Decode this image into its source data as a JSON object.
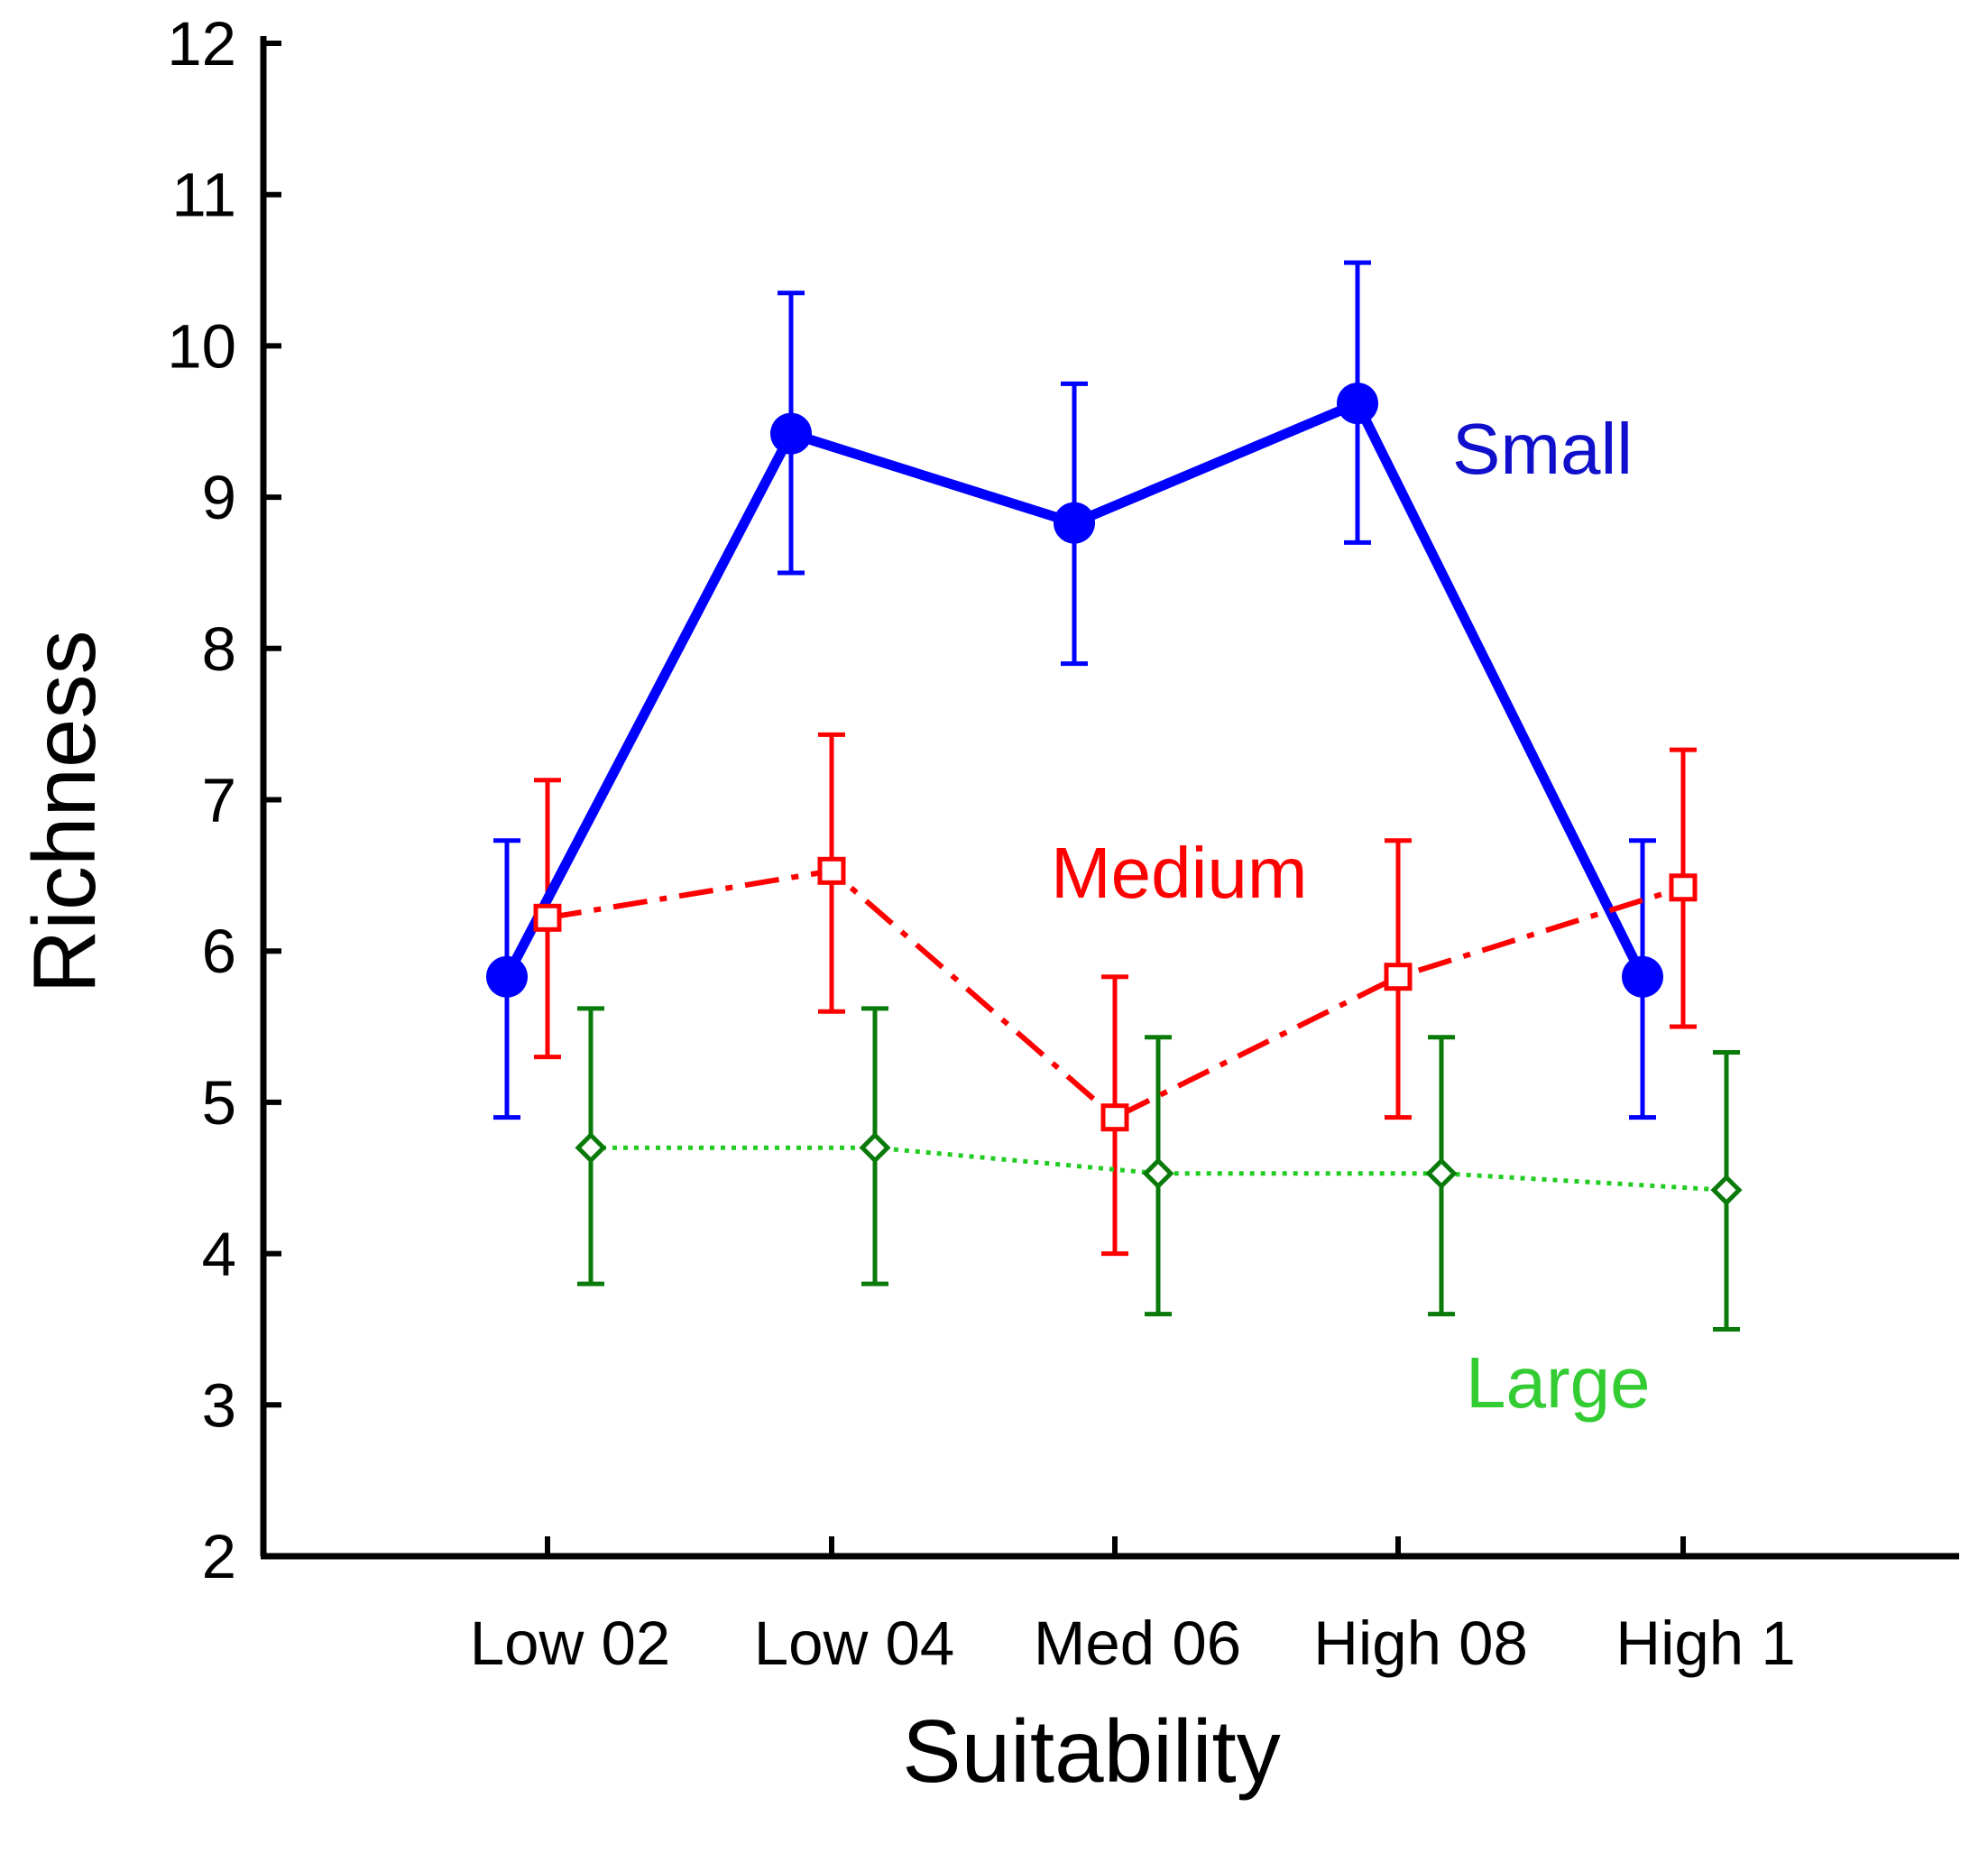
{
  "chart_data": {
    "type": "line",
    "xlabel": "Suitability",
    "ylabel": "Richness",
    "ylim": [
      2,
      12
    ],
    "yticks": [
      2,
      3,
      4,
      5,
      6,
      7,
      8,
      9,
      10,
      11,
      12
    ],
    "categories": [
      "Low 02",
      "Low 04",
      "Med 06",
      "High 08",
      "High 1"
    ],
    "grid": false,
    "legend": "inline labels beside each series",
    "series": [
      {
        "name": "Small",
        "color": "#0000ff",
        "label_color": "#1010cc",
        "line": "solid",
        "marker": "filled-circle",
        "values": [
          5.83,
          9.42,
          8.83,
          9.62,
          5.83
        ],
        "error_low": [
          4.9,
          8.5,
          7.9,
          8.7,
          4.9
        ],
        "error_high": [
          6.73,
          10.35,
          9.75,
          10.55,
          6.73
        ]
      },
      {
        "name": "Medium",
        "color": "#ff0000",
        "label_color": "#ff0000",
        "line": "dash-dot",
        "marker": "open-square",
        "values": [
          6.22,
          6.53,
          4.9,
          5.83,
          6.42
        ],
        "error_low": [
          5.3,
          5.6,
          4.0,
          4.9,
          5.5
        ],
        "error_high": [
          7.13,
          7.43,
          5.83,
          6.73,
          7.33
        ]
      },
      {
        "name": "Large",
        "color": "#22cc22",
        "error_color": "#0a7a0a",
        "label_color": "#33cc33",
        "line": "dotted",
        "marker": "open-diamond",
        "values": [
          4.7,
          4.7,
          4.53,
          4.53,
          4.42
        ],
        "error_low": [
          3.8,
          3.8,
          3.6,
          3.6,
          3.5
        ],
        "error_high": [
          5.62,
          5.62,
          5.43,
          5.43,
          5.33
        ]
      }
    ]
  }
}
